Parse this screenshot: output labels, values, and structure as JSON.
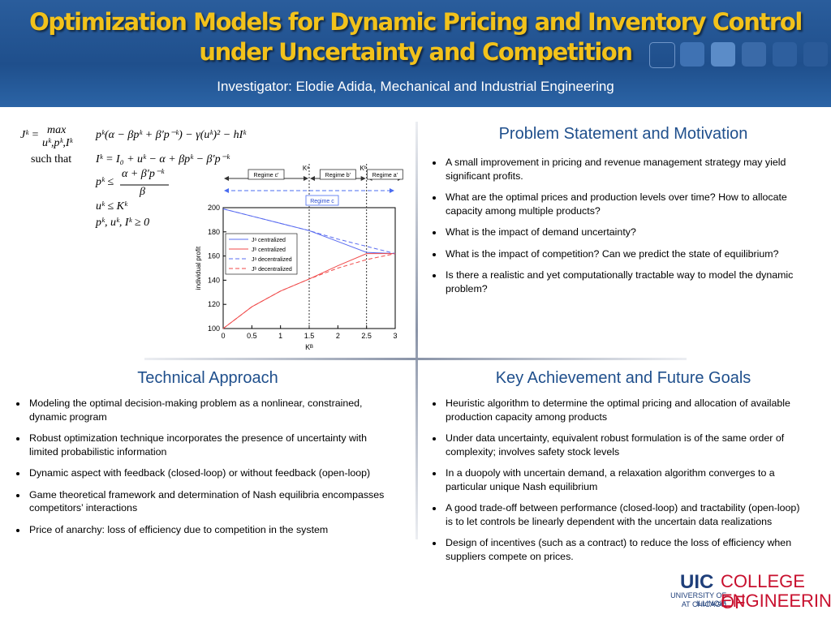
{
  "header": {
    "title_line1": "Optimization Models  for Dynamic Pricing and Inventory Control",
    "title_line2": "under Uncertainty and Competition",
    "subtitle": "Investigator: Elodie Adida, Mechanical and Industrial Engineering"
  },
  "formulas": [
    "Jᵏ =",
    "max",
    "uᵏ,pᵏ,Iᵏ",
    "pᵏ(α − βpᵏ + β′p⁻ᵏ) − γ(uᵏ)² − hIᵏ",
    "such that",
    "Iᵏ = I₀ + uᵏ − α + βpᵏ − β′p⁻ᵏ",
    "pᵏ ≤",
    "α + β′p⁻ᵏ",
    "β",
    "uᵏ ≤ Kᵏ",
    "pᵏ, uᵏ, Iᵏ ≥ 0"
  ],
  "figure": {
    "type": "line",
    "regimes": [
      "Regime c'",
      "Regime b'",
      "Regime a'",
      "Regime c"
    ],
    "markers": [
      "Kᵃ",
      "Kᵇ"
    ],
    "x": [
      0,
      0.5,
      1,
      1.5,
      2,
      2.5,
      3
    ],
    "series": [
      {
        "name": "Jᵃ centralized",
        "color": "#5a6cf0",
        "dash": false,
        "values": [
          199,
          193,
          187,
          181,
          172,
          163,
          162
        ]
      },
      {
        "name": "Jᵇ centralized",
        "color": "#f04a4a",
        "dash": false,
        "values": [
          100,
          118,
          131,
          141,
          152,
          162,
          162
        ]
      },
      {
        "name": "Jᵃ decentralized",
        "color": "#5a6cf0",
        "dash": true,
        "values": [
          199,
          193,
          187,
          181,
          174,
          168,
          162
        ]
      },
      {
        "name": "Jᵇ decentralized",
        "color": "#f04a4a",
        "dash": true,
        "values": [
          100,
          118,
          131,
          141,
          150,
          157,
          162
        ]
      }
    ],
    "xlim": [
      0,
      3
    ],
    "ylim": [
      100,
      200
    ],
    "xticks": [
      0,
      0.5,
      1,
      1.5,
      2,
      2.5,
      3
    ],
    "yticks": [
      100,
      120,
      140,
      160,
      180,
      200
    ],
    "xlabel": "Kᴮ",
    "ylabel": "individual profit"
  },
  "sections": [
    {
      "heading": "Problem Statement and Motivation",
      "bullets": [
        "A small improvement in pricing and revenue management strategy may yield significant profits.",
        "What are the optimal prices and production levels over time? How to allocate capacity among multiple products?",
        "What is the impact of demand uncertainty?",
        "What is the impact of competition? Can we predict the state of equilibrium?",
        "Is there a realistic and yet computationally tractable way to model the dynamic problem?"
      ]
    },
    {
      "heading": "Technical Approach",
      "bullets": [
        "Modeling the optimal decision-making problem as a nonlinear, constrained, dynamic program",
        "Robust optimization technique incorporates the presence of uncertainty with limited probabilistic information",
        "Dynamic aspect with feedback (closed-loop) or without feedback (open-loop)",
        "Game theoretical framework and determination of Nash equilibria encompasses competitors’ interactions",
        "Price of anarchy: loss of efficiency due to competition in the system"
      ]
    },
    {
      "heading": "Key Achievement and Future Goals",
      "bullets": [
        "Heuristic algorithm to determine the optimal pricing and allocation of available production capacity among products",
        "Under data uncertainty, equivalent robust formulation is of the same order of complexity; involves safety stock levels",
        "In a duopoly with uncertain demand, a relaxation algorithm converges to a particular unique Nash equilibrium",
        "A good trade-off between performance (closed-loop) and tractability (open-loop) is to let controls be linearly dependent with the uncertain data realizations",
        "Design of incentives (such as a contract) to reduce the loss of efficiency when suppliers compete on prices."
      ]
    }
  ],
  "logo": {
    "uic": "UIC",
    "college": "COLLEGE OF",
    "university": "UNIVERSITY OF ILLINOIS",
    "location": "AT CHICAGO",
    "engineering": "ENGINEERING"
  }
}
